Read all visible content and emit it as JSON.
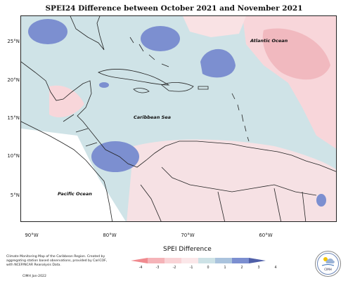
{
  "title": "SPEI24 Difference between October 2021 and November 2021",
  "lat_ticks": [
    "25°N",
    "20°N",
    "15°N",
    "10°N",
    "5°N"
  ],
  "lon_ticks": [
    "90°W",
    "80°W",
    "70°W",
    "60°W"
  ],
  "ocean_labels": {
    "atlantic": "Atlantic Ocean",
    "caribbean": "Caribbean Sea",
    "pacific": "Pacific Ocean"
  },
  "credit": {
    "text": "Climate Monitoring Map of the Caribbean Region. Created by aggregating station based observations, provided by CariCOF, with NCEP/NCAR Reanalysis Data.",
    "date": "CIMH Jan-2022"
  },
  "legend": {
    "title": "SPEI Difference",
    "ticks": [
      "-4",
      "-3",
      "-2",
      "-1",
      "0",
      "1",
      "2",
      "3",
      "4"
    ],
    "colors": [
      "#f08a8f",
      "#f5b3b8",
      "#f9d3d6",
      "#fbe7e9",
      "#cde2e6",
      "#aac3dd",
      "#7c8fd0",
      "#4f5fa8"
    ]
  },
  "logo_text": "CIMH"
}
